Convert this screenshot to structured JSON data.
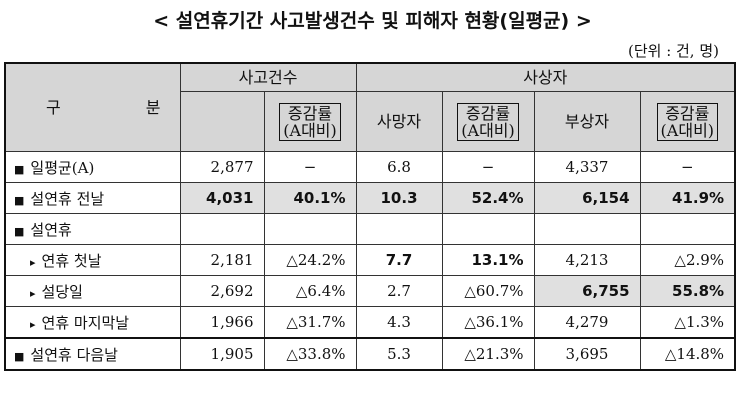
{
  "title": "< 설연휴기간 사고발생건수 및 피해자 현황(일평균) >",
  "unit": "(단위 : 건, 명)",
  "headers": {
    "group": "구  분",
    "accidents": "사고건수",
    "casualties": "사상자",
    "change_line1": "증감률",
    "change_line2": "(A대비)",
    "deaths": "사망자",
    "injured": "부상자"
  },
  "rows": [
    {
      "bullet": "■",
      "label": "일평균(A)",
      "values": [
        "2,877",
        "−",
        "6.8",
        "−",
        "4,337",
        "−"
      ]
    },
    {
      "bullet": "■",
      "label": "설연휴 전날",
      "values": [
        "4,031",
        "40.1%",
        "10.3",
        "52.4%",
        "6,154",
        "41.9%"
      ]
    },
    {
      "bullet": "■",
      "label": "설연휴",
      "values": [
        "",
        "",
        "",
        "",
        "",
        ""
      ]
    },
    {
      "bullet": "▸",
      "label": "연휴 첫날",
      "values": [
        "2,181",
        "△24.2%",
        "7.7",
        "13.1%",
        "4,213",
        "△2.9%"
      ]
    },
    {
      "bullet": "▸",
      "label": "설당일",
      "values": [
        "2,692",
        "△6.4%",
        "2.7",
        "△60.7%",
        "6,755",
        "55.8%"
      ]
    },
    {
      "bullet": "▸",
      "label": "연휴 마지막날",
      "values": [
        "1,966",
        "△31.7%",
        "4.3",
        "△36.1%",
        "4,279",
        "△1.3%"
      ]
    },
    {
      "bullet": "■",
      "label": "설연휴 다음날",
      "values": [
        "1,905",
        "△33.8%",
        "5.3",
        "△21.3%",
        "3,695",
        "△14.8%"
      ]
    }
  ]
}
